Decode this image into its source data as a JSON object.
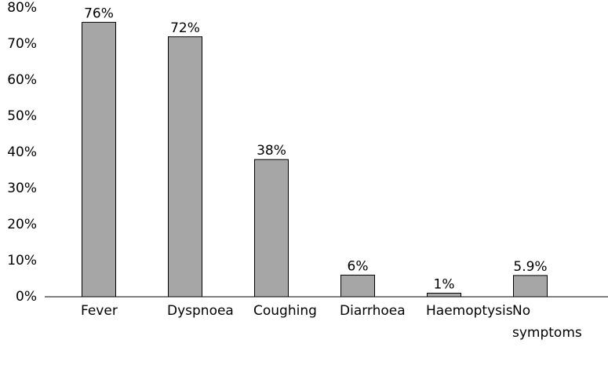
{
  "chart_data": {
    "type": "bar",
    "categories": [
      "Fever",
      "Dyspnoea",
      "Coughing",
      "Diarrhoea",
      "Haemoptysis",
      "No symptoms"
    ],
    "values": [
      76,
      72,
      38,
      6,
      1,
      5.9
    ],
    "value_labels": [
      "76%",
      "72%",
      "38%",
      "6%",
      "1%",
      "5.9%"
    ],
    "color": "#a6a6a6",
    "ylim": [
      0,
      80
    ],
    "yticks": [
      {
        "value": 0,
        "label": "0%"
      },
      {
        "value": 10,
        "label": "10%"
      },
      {
        "value": 20,
        "label": "20%"
      },
      {
        "value": 30,
        "label": "30%"
      },
      {
        "value": 40,
        "label": "40%"
      },
      {
        "value": 50,
        "label": "50%"
      },
      {
        "value": 60,
        "label": "60%"
      },
      {
        "value": 70,
        "label": "70%"
      },
      {
        "value": 80,
        "label": "80%"
      }
    ],
    "grid": false
  }
}
